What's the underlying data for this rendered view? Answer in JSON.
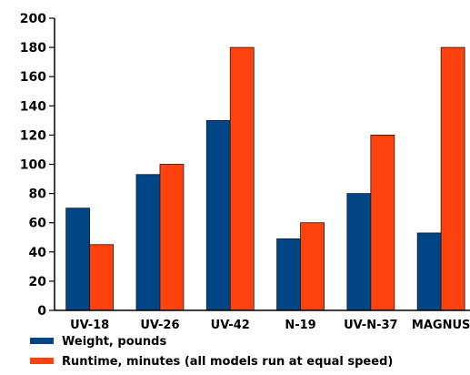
{
  "chart_data": {
    "type": "bar",
    "title": "",
    "xlabel": "",
    "ylabel": "",
    "categories": [
      "UV-18",
      "UV-26",
      "UV-42",
      "N-19",
      "UV-N-37",
      "MAGNUS"
    ],
    "series": [
      {
        "name": "Weight, pounds",
        "color": "#004586",
        "values": [
          70,
          93,
          130,
          49,
          80,
          53
        ]
      },
      {
        "name": "Runtime, minutes (all models run at equal speed)",
        "color": "#ff420e",
        "values": [
          45,
          100,
          180,
          60,
          120,
          180
        ]
      }
    ],
    "ylim": [
      0,
      200
    ],
    "yticks": [
      0,
      20,
      40,
      60,
      80,
      100,
      120,
      140,
      160,
      180,
      200
    ],
    "grid": false,
    "legend_position": "bottom-left"
  }
}
